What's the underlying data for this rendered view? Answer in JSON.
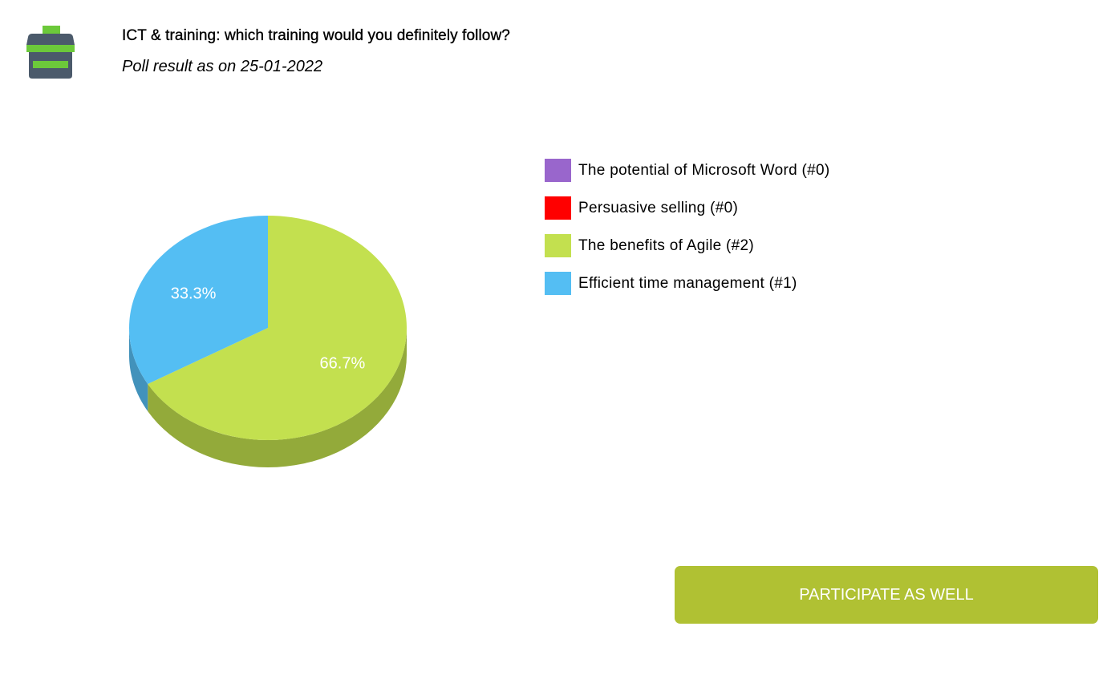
{
  "header": {
    "title": "ICT & training: which training would you definitely follow?",
    "subtitle": "Poll result as on 25-01-2022"
  },
  "icons": {
    "logo": "ballot-box-icon"
  },
  "colors": {
    "logo_green": "#6cc93a",
    "logo_dark": "#4b5a6b",
    "button_bg": "#b0c133",
    "button_text": "#ffffff"
  },
  "chart_data": {
    "type": "pie",
    "title": "",
    "series": [
      {
        "name": "The potential of Microsoft Word",
        "label": "The potential of Microsoft Word (#0)",
        "count": 0,
        "percent": 0,
        "color": "#9966cc",
        "side_color": "#7a52a3"
      },
      {
        "name": "Persuasive selling",
        "label": "Persuasive selling (#0)",
        "count": 0,
        "percent": 0,
        "color": "#ff0000",
        "side_color": "#cc0000"
      },
      {
        "name": "The benefits of Agile",
        "label": "The benefits of Agile (#2)",
        "count": 2,
        "percent": 66.7,
        "value_label": "66.7%",
        "color": "#c3e04f",
        "side_color": "#93aa3a"
      },
      {
        "name": "Efficient time management",
        "label": "Efficient time management (#1)",
        "count": 1,
        "percent": 33.3,
        "value_label": "33.3%",
        "color": "#54bef3",
        "side_color": "#4292bb"
      }
    ],
    "legend_position": "right"
  },
  "actions": {
    "participate_label": "PARTICIPATE AS WELL"
  }
}
